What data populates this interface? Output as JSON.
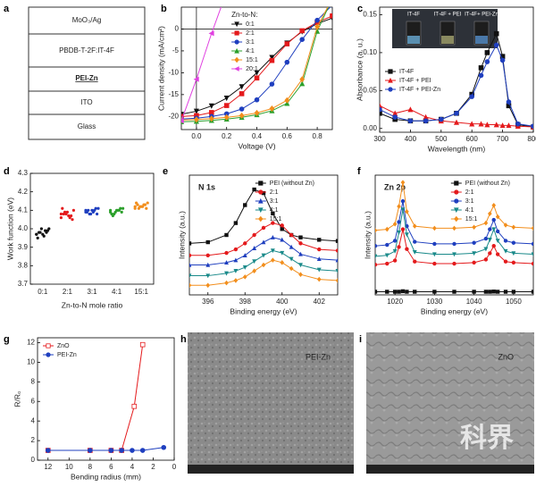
{
  "panels": [
    "a",
    "b",
    "c",
    "d",
    "e",
    "f",
    "g",
    "h",
    "i"
  ],
  "stack": {
    "layers": [
      "MoO₃/Ag",
      "PBDB-T-2F:IT-4F",
      "PEI-Zn",
      "ITO",
      "Glass"
    ]
  },
  "images": [
    {
      "label": "PEI-Zn"
    },
    {
      "label": "ZnO"
    }
  ],
  "watermark": "科界",
  "chart_data": [
    {
      "type": "line",
      "x_label": "Voltage (V)",
      "y_label": "Current density (mA/cm²)",
      "xlim": [
        -0.1,
        0.9
      ],
      "xticks": [
        {
          "value": 0,
          "label": "0.0"
        },
        0.2,
        0.4,
        0.6,
        0.8
      ],
      "ylim": [
        -23,
        5
      ],
      "yticks": [
        -20,
        -15,
        -10,
        -5,
        0
      ],
      "zero_lines": true,
      "legend": "upper center",
      "legend_title": "Zn-to-N:",
      "x": [
        -0.1,
        0,
        0.1,
        0.2,
        0.3,
        0.4,
        0.5,
        0.6,
        0.7,
        0.8,
        0.9
      ],
      "series": [
        {
          "name": "0:1",
          "color": "#111111",
          "marker": "v",
          "values": [
            -19.5,
            -18.8,
            -17.6,
            -15.8,
            -13.2,
            -10,
            -6.5,
            -3.2,
            -0.6,
            1.2,
            2.5
          ]
        },
        {
          "name": "2:1",
          "color": "#e41a1c",
          "marker": "s",
          "values": [
            -20,
            -19.8,
            -19.1,
            -17.5,
            -14.8,
            -11.2,
            -7.2,
            -3.4,
            -0.4,
            1.5,
            3
          ]
        },
        {
          "name": "3:1",
          "color": "#1f3fbf",
          "marker": "o",
          "values": [
            -20.6,
            -20.4,
            -20,
            -19.4,
            -18.3,
            -16.2,
            -12.6,
            -7.6,
            -2.4,
            2,
            5.5
          ]
        },
        {
          "name": "4:1",
          "color": "#2ca02c",
          "marker": "^",
          "values": [
            -21.2,
            -21.1,
            -20.9,
            -20.6,
            -20.2,
            -19.6,
            -18.7,
            -17,
            -12.5,
            -0.5,
            7
          ]
        },
        {
          "name": "15:1",
          "color": "#f28e1c",
          "marker": "D",
          "values": [
            -20.8,
            -20.7,
            -20.5,
            -20.2,
            -19.8,
            -19.2,
            -18.2,
            -16.3,
            -11.5,
            0.5,
            7
          ]
        },
        {
          "name": "20:1",
          "color": "#e040e0",
          "marker": "<",
          "values": [
            -21,
            -11.5,
            -1,
            8.5,
            null,
            null,
            null,
            null,
            null,
            null,
            null
          ]
        }
      ]
    },
    {
      "type": "line",
      "x_label": "Wavelength (nm)",
      "y_label": "Absorbance (a. u.)",
      "xlim": [
        300,
        800
      ],
      "xticks": [
        300,
        400,
        500,
        600,
        700,
        800
      ],
      "ylim": [
        -0.005,
        0.16
      ],
      "yticks": [
        {
          "value": 0,
          "label": "0.00"
        },
        {
          "value": 0.05,
          "label": "0.05"
        },
        {
          "value": 0.1,
          "label": "0.10"
        },
        {
          "value": 0.15,
          "label": "0.15"
        }
      ],
      "legend": "center left",
      "inset_labels": [
        "IT-4F",
        "IT-4F + PEI",
        "IT-4F+ PEI-Zn"
      ],
      "x": [
        300,
        350,
        400,
        450,
        500,
        550,
        600,
        630,
        650,
        680,
        700,
        720,
        750,
        800
      ],
      "series": [
        {
          "name": "IT-4F",
          "color": "#111111",
          "marker": "s",
          "values": [
            0.02,
            0.012,
            0.01,
            0.01,
            0.012,
            0.02,
            0.045,
            0.08,
            0.1,
            0.125,
            0.095,
            0.03,
            0.005,
            0.002
          ]
        },
        {
          "name": "IT-4F + PEI",
          "color": "#e41a1c",
          "marker": "^",
          "values": [
            0.03,
            0.02,
            0.025,
            0.015,
            0.01,
            0.008,
            0.006,
            0.006,
            0.005,
            0.005,
            0.004,
            0.004,
            0.003,
            0.002
          ]
        },
        {
          "name": "IT-4F + PEI-Zn",
          "color": "#1f3fbf",
          "marker": "o",
          "values": [
            0.025,
            0.015,
            0.01,
            0.01,
            0.012,
            0.02,
            0.042,
            0.07,
            0.088,
            0.11,
            0.09,
            0.035,
            0.006,
            0.003
          ]
        }
      ]
    },
    {
      "type": "scatter",
      "x_label": "Zn-to-N mole ratio",
      "y_label": "Work function (eV)",
      "ylim": [
        3.7,
        4.3
      ],
      "yticks": [
        3.7,
        3.8,
        3.9,
        {
          "value": 4,
          "label": "4.0"
        },
        4.1,
        4.2,
        4.3
      ],
      "categories": [
        "0:1",
        "2:1",
        "3:1",
        "4:1",
        "15:1"
      ],
      "colors": [
        "#111111",
        "#e41a1c",
        "#1f3fbf",
        "#2ca02c",
        "#f28e1c"
      ],
      "values": [
        [
          3.97,
          3.99,
          3.98,
          4.0,
          3.96,
          3.98,
          3.99,
          3.97,
          3.95,
          3.98,
          4.0,
          3.97
        ],
        [
          4.08,
          4.06,
          4.09,
          4.1,
          4.07,
          4.08,
          4.05,
          4.09,
          4.11,
          4.07,
          4.08,
          4.06
        ],
        [
          4.09,
          4.1,
          4.08,
          4.11,
          4.09,
          4.1,
          4.08,
          4.1,
          4.09,
          4.11,
          4.08,
          4.1
        ],
        [
          4.09,
          4.1,
          4.08,
          4.11,
          4.1,
          4.07,
          4.09,
          4.1,
          4.08,
          4.11,
          4.09,
          4.1
        ],
        [
          4.12,
          4.13,
          4.11,
          4.14,
          4.12,
          4.13,
          4.11,
          4.12,
          4.14,
          4.13,
          4.12,
          4.11
        ]
      ]
    },
    {
      "type": "line",
      "x_label": "Binding energy (eV)",
      "y_label": "Intensity (a.u.)",
      "annotation": "N 1s",
      "xlim": [
        395,
        403
      ],
      "xticks": [
        396,
        398,
        400,
        402
      ],
      "ylim": [
        0,
        10
      ],
      "legend": "upper right",
      "x": [
        395,
        396,
        397,
        397.5,
        398,
        398.5,
        399,
        399.5,
        400,
        400.5,
        401,
        402,
        403
      ],
      "series": [
        {
          "name": "PEI (without Zn)",
          "color": "#111111",
          "marker": "s",
          "values": [
            4.3,
            4.4,
            5,
            6,
            7.5,
            8.8,
            8.5,
            6.8,
            5.5,
            5,
            4.8,
            4.6,
            4.5
          ]
        },
        {
          "name": "2:1",
          "color": "#e41a1c",
          "marker": "o",
          "values": [
            3.3,
            3.3,
            3.5,
            3.8,
            4.3,
            5,
            5.6,
            6,
            5.8,
            5,
            4.3,
            3.8,
            3.7
          ]
        },
        {
          "name": "3:1",
          "color": "#1f3fbf",
          "marker": "^",
          "values": [
            2.5,
            2.5,
            2.7,
            2.9,
            3.3,
            3.9,
            4.4,
            4.8,
            4.6,
            4,
            3.4,
            3,
            2.9
          ]
        },
        {
          "name": "4:1",
          "color": "#1a8a8a",
          "marker": "v",
          "values": [
            1.6,
            1.6,
            1.8,
            2,
            2.3,
            2.8,
            3.3,
            3.7,
            3.5,
            3,
            2.5,
            2.1,
            2
          ]
        },
        {
          "name": "15:1",
          "color": "#f28e1c",
          "marker": "D",
          "values": [
            0.8,
            0.8,
            1,
            1.2,
            1.5,
            2,
            2.5,
            2.9,
            2.7,
            2.2,
            1.7,
            1.3,
            1.2
          ]
        }
      ]
    },
    {
      "type": "line",
      "x_label": "Binding energy (eV)",
      "y_label": "Intensity (a.u.)",
      "annotation": "Zn 2p",
      "xlim": [
        1015,
        1055
      ],
      "xticks": [
        1020,
        1030,
        1040,
        1050
      ],
      "ylim": [
        0,
        11.5
      ],
      "legend": "upper right",
      "x": [
        1015,
        1018,
        1020,
        1021,
        1022,
        1023,
        1025,
        1030,
        1035,
        1040,
        1043,
        1044,
        1045,
        1046,
        1048,
        1050,
        1055
      ],
      "series": [
        {
          "name": "PEI (without Zn)",
          "color": "#111111",
          "marker": "s",
          "values": [
            0.3,
            0.3,
            0.3,
            0.3,
            0.35,
            0.3,
            0.3,
            0.3,
            0.3,
            0.3,
            0.3,
            0.3,
            0.32,
            0.3,
            0.3,
            0.3,
            0.3
          ]
        },
        {
          "name": "2:1",
          "color": "#e41a1c",
          "marker": "o",
          "values": [
            2.9,
            3,
            3.3,
            4.6,
            6.3,
            4.4,
            3.2,
            3,
            3,
            3.1,
            3.4,
            4,
            4.7,
            3.9,
            3.2,
            3.1,
            3
          ]
        },
        {
          "name": "3:1",
          "color": "#1f3fbf",
          "marker": "o",
          "values": [
            4.7,
            4.8,
            5.2,
            7,
            9,
            6.6,
            5.1,
            4.9,
            4.9,
            5,
            5.4,
            6.3,
            7.2,
            6.1,
            5.2,
            5,
            4.9
          ]
        },
        {
          "name": "4:1",
          "color": "#1a8a8a",
          "marker": "v",
          "values": [
            3.7,
            3.8,
            4.2,
            6,
            8.2,
            5.8,
            4.1,
            3.9,
            3.9,
            4,
            4.4,
            5.3,
            6.3,
            5.2,
            4.2,
            4,
            3.9
          ]
        },
        {
          "name": "15:1",
          "color": "#f28e1c",
          "marker": "D",
          "values": [
            6.2,
            6.3,
            6.8,
            8.5,
            10.8,
            8,
            6.6,
            6.4,
            6.4,
            6.5,
            6.9,
            7.8,
            8.6,
            7.5,
            6.7,
            6.5,
            6.4
          ]
        }
      ]
    },
    {
      "type": "line",
      "x_label": "Bending radius (mm)",
      "y_label": "R/R₀",
      "xlim": [
        13,
        0
      ],
      "xticks": [
        12,
        10,
        8,
        6,
        4,
        2,
        0
      ],
      "ylim": [
        0,
        12.5
      ],
      "yticks": [
        0,
        2,
        4,
        6,
        8,
        10,
        12
      ],
      "legend": "upper left",
      "series": [
        {
          "name": "ZnO",
          "color": "#e41a1c",
          "marker": "s",
          "open": true,
          "x": [
            12,
            8,
            6,
            5,
            3.8,
            3
          ],
          "values": [
            1,
            1,
            1,
            1,
            5.5,
            11.8
          ]
        },
        {
          "name": "PEI-Zn",
          "color": "#1f3fbf",
          "marker": "o",
          "x": [
            12,
            8,
            6,
            5,
            4,
            3,
            1
          ],
          "values": [
            1,
            1,
            1,
            1,
            1,
            1,
            1.3
          ]
        }
      ]
    }
  ]
}
